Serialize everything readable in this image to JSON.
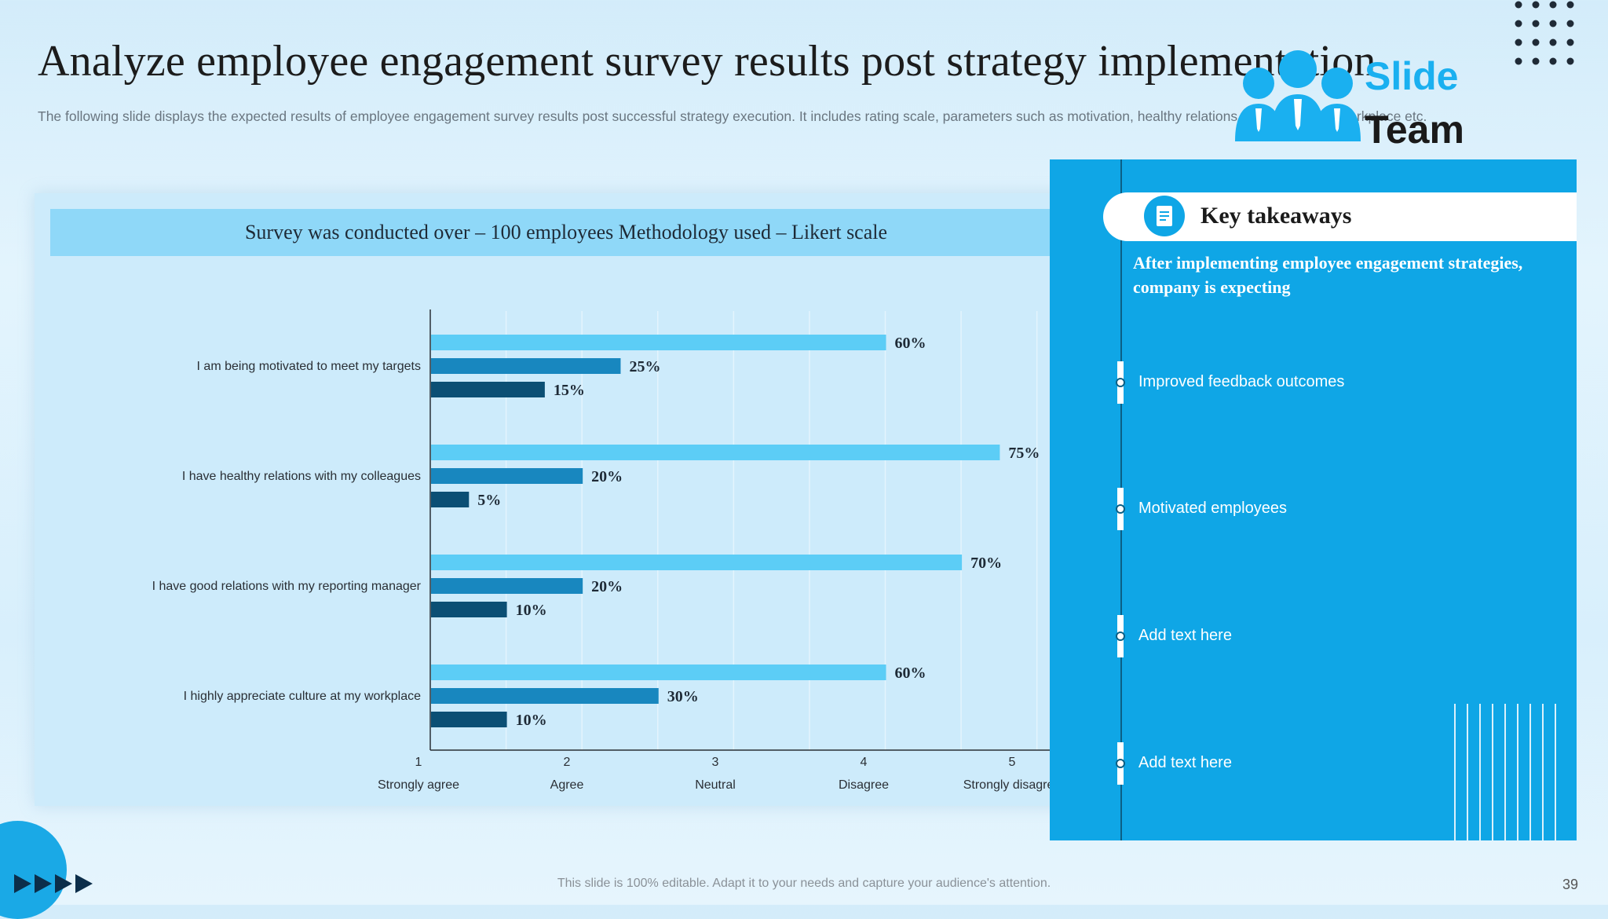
{
  "title": "Analyze employee engagement survey results post strategy implementation",
  "subtitle": "The following slide displays the expected results of employee engagement survey results post successful strategy execution. It includes rating scale, parameters such as motivation, healthy relations, appreciation at workplace etc.",
  "logo": {
    "word1": "Slide",
    "word2": "Team"
  },
  "chart_header": "Survey was conducted over – 100 employees Methodology used – Likert scale",
  "chart_data": {
    "type": "bar",
    "orientation": "horizontal",
    "categories": [
      "I am being motivated to meet my targets",
      "I have healthy relations with my colleagues",
      "I have good relations with my reporting manager",
      "I highly appreciate culture at my workplace"
    ],
    "series": [
      {
        "values": [
          60,
          75,
          70,
          60
        ],
        "color": "#5ccdf6"
      },
      {
        "values": [
          25,
          20,
          20,
          30
        ],
        "color": "#1887bf"
      },
      {
        "values": [
          15,
          5,
          10,
          10
        ],
        "color": "#0b4f74"
      }
    ],
    "data_labels": [
      [
        "60%",
        "25%",
        "15%"
      ],
      [
        "75%",
        "20%",
        "5%"
      ],
      [
        "70%",
        "20%",
        "10%"
      ],
      [
        "60%",
        "30%",
        "10%"
      ]
    ],
    "x_ticks": [
      "1",
      "2",
      "3",
      "4",
      "5"
    ],
    "x_tick_labels": [
      "Strongly agree",
      "Agree",
      "Neutral",
      "Disagree",
      "Strongly disagree"
    ],
    "xlim": [
      0,
      82
    ],
    "grid": true
  },
  "takeaways": {
    "title": "Key takeaways",
    "intro": "After implementing employee engagement strategies, company is expecting",
    "items": [
      "Improved  feedback outcomes",
      "Motivated  employees",
      "Add text here",
      "Add text here"
    ]
  },
  "footer": "This slide is 100% editable.  Adapt it to your needs and capture your audience's attention.",
  "page_number": "39",
  "colors": {
    "accent": "#0fa6e6",
    "bar_light": "#5ccdf6",
    "bar_mid": "#1887bf",
    "bar_dark": "#0b4f74"
  }
}
